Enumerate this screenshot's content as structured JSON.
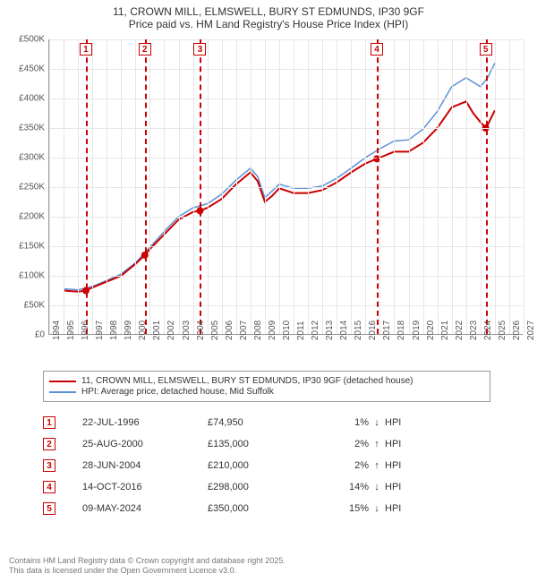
{
  "title1": "11, CROWN MILL, ELMSWELL, BURY ST EDMUNDS, IP30 9GF",
  "title2": "Price paid vs. HM Land Registry's House Price Index (HPI)",
  "chart": {
    "type": "line",
    "background": "#ffffff",
    "grid_color": "#e6e6e6",
    "x_years": [
      1994,
      1995,
      1996,
      1997,
      1998,
      1999,
      2000,
      2001,
      2002,
      2003,
      2004,
      2005,
      2006,
      2007,
      2008,
      2009,
      2010,
      2011,
      2012,
      2013,
      2014,
      2015,
      2016,
      2017,
      2018,
      2019,
      2020,
      2021,
      2022,
      2023,
      2024,
      2025,
      2026,
      2027
    ],
    "xlim": [
      1994,
      2027
    ],
    "ylim": [
      0,
      500000
    ],
    "ytick_step": 50000,
    "yticks": [
      "£0",
      "£50K",
      "£100K",
      "£150K",
      "£200K",
      "£250K",
      "£300K",
      "£350K",
      "£400K",
      "£450K",
      "£500K"
    ],
    "series_red": {
      "label": "11, CROWN MILL, ELMSWELL, BURY ST EDMUNDS, IP30 9GF (detached house)",
      "color": "#cc0000",
      "width": 2,
      "points": [
        [
          1995,
          75000
        ],
        [
          1996,
          73000
        ],
        [
          1996.5,
          74950
        ],
        [
          1997,
          80000
        ],
        [
          1998,
          90000
        ],
        [
          1999,
          100000
        ],
        [
          2000,
          120000
        ],
        [
          2000.65,
          135000
        ],
        [
          2001,
          145000
        ],
        [
          2002,
          170000
        ],
        [
          2003,
          195000
        ],
        [
          2004,
          208000
        ],
        [
          2004.5,
          210000
        ],
        [
          2005,
          215000
        ],
        [
          2006,
          230000
        ],
        [
          2007,
          255000
        ],
        [
          2008,
          275000
        ],
        [
          2008.5,
          260000
        ],
        [
          2009,
          225000
        ],
        [
          2009.5,
          235000
        ],
        [
          2010,
          248000
        ],
        [
          2011,
          240000
        ],
        [
          2012,
          240000
        ],
        [
          2013,
          245000
        ],
        [
          2014,
          258000
        ],
        [
          2015,
          275000
        ],
        [
          2016,
          290000
        ],
        [
          2016.8,
          298000
        ],
        [
          2017,
          300000
        ],
        [
          2018,
          310000
        ],
        [
          2019,
          310000
        ],
        [
          2020,
          325000
        ],
        [
          2021,
          350000
        ],
        [
          2022,
          385000
        ],
        [
          2023,
          395000
        ],
        [
          2023.5,
          375000
        ],
        [
          2024,
          360000
        ],
        [
          2024.4,
          350000
        ],
        [
          2025,
          380000
        ]
      ]
    },
    "series_blue": {
      "label": "HPI: Average price, detached house, Mid Suffolk",
      "color": "#5b8fd6",
      "width": 1.5,
      "points": [
        [
          1995,
          78000
        ],
        [
          1996,
          76000
        ],
        [
          1997,
          82000
        ],
        [
          1998,
          92000
        ],
        [
          1999,
          103000
        ],
        [
          2000,
          122000
        ],
        [
          2001,
          148000
        ],
        [
          2002,
          175000
        ],
        [
          2003,
          200000
        ],
        [
          2004,
          215000
        ],
        [
          2005,
          222000
        ],
        [
          2006,
          238000
        ],
        [
          2007,
          262000
        ],
        [
          2008,
          282000
        ],
        [
          2008.5,
          268000
        ],
        [
          2009,
          232000
        ],
        [
          2010,
          255000
        ],
        [
          2011,
          248000
        ],
        [
          2012,
          248000
        ],
        [
          2013,
          252000
        ],
        [
          2014,
          265000
        ],
        [
          2015,
          282000
        ],
        [
          2016,
          300000
        ],
        [
          2017,
          315000
        ],
        [
          2018,
          328000
        ],
        [
          2019,
          330000
        ],
        [
          2020,
          348000
        ],
        [
          2021,
          378000
        ],
        [
          2022,
          420000
        ],
        [
          2023,
          435000
        ],
        [
          2024,
          420000
        ],
        [
          2024.5,
          435000
        ],
        [
          2025,
          460000
        ]
      ]
    },
    "sale_markers": [
      {
        "x": 1996.55,
        "y": 74950
      },
      {
        "x": 2000.65,
        "y": 135000
      },
      {
        "x": 2004.49,
        "y": 210000
      },
      {
        "x": 2016.79,
        "y": 298000
      },
      {
        "x": 2024.36,
        "y": 350000
      }
    ],
    "marker_color": "#cc0000",
    "marker_radius": 4,
    "event_line_color": "#cc0000"
  },
  "events": [
    {
      "n": "1",
      "date": "22-JUL-1996",
      "price": "£74,950",
      "pct": "1%",
      "dir": "↓",
      "hpi": "HPI",
      "x": 1996.55
    },
    {
      "n": "2",
      "date": "25-AUG-2000",
      "price": "£135,000",
      "pct": "2%",
      "dir": "↑",
      "hpi": "HPI",
      "x": 2000.65
    },
    {
      "n": "3",
      "date": "28-JUN-2004",
      "price": "£210,000",
      "pct": "2%",
      "dir": "↑",
      "hpi": "HPI",
      "x": 2004.49
    },
    {
      "n": "4",
      "date": "14-OCT-2016",
      "price": "£298,000",
      "pct": "14%",
      "dir": "↓",
      "hpi": "HPI",
      "x": 2016.79
    },
    {
      "n": "5",
      "date": "09-MAY-2024",
      "price": "£350,000",
      "pct": "15%",
      "dir": "↓",
      "hpi": "HPI",
      "x": 2024.36
    }
  ],
  "footer1": "Contains HM Land Registry data © Crown copyright and database right 2025.",
  "footer2": "This data is licensed under the Open Government Licence v3.0."
}
